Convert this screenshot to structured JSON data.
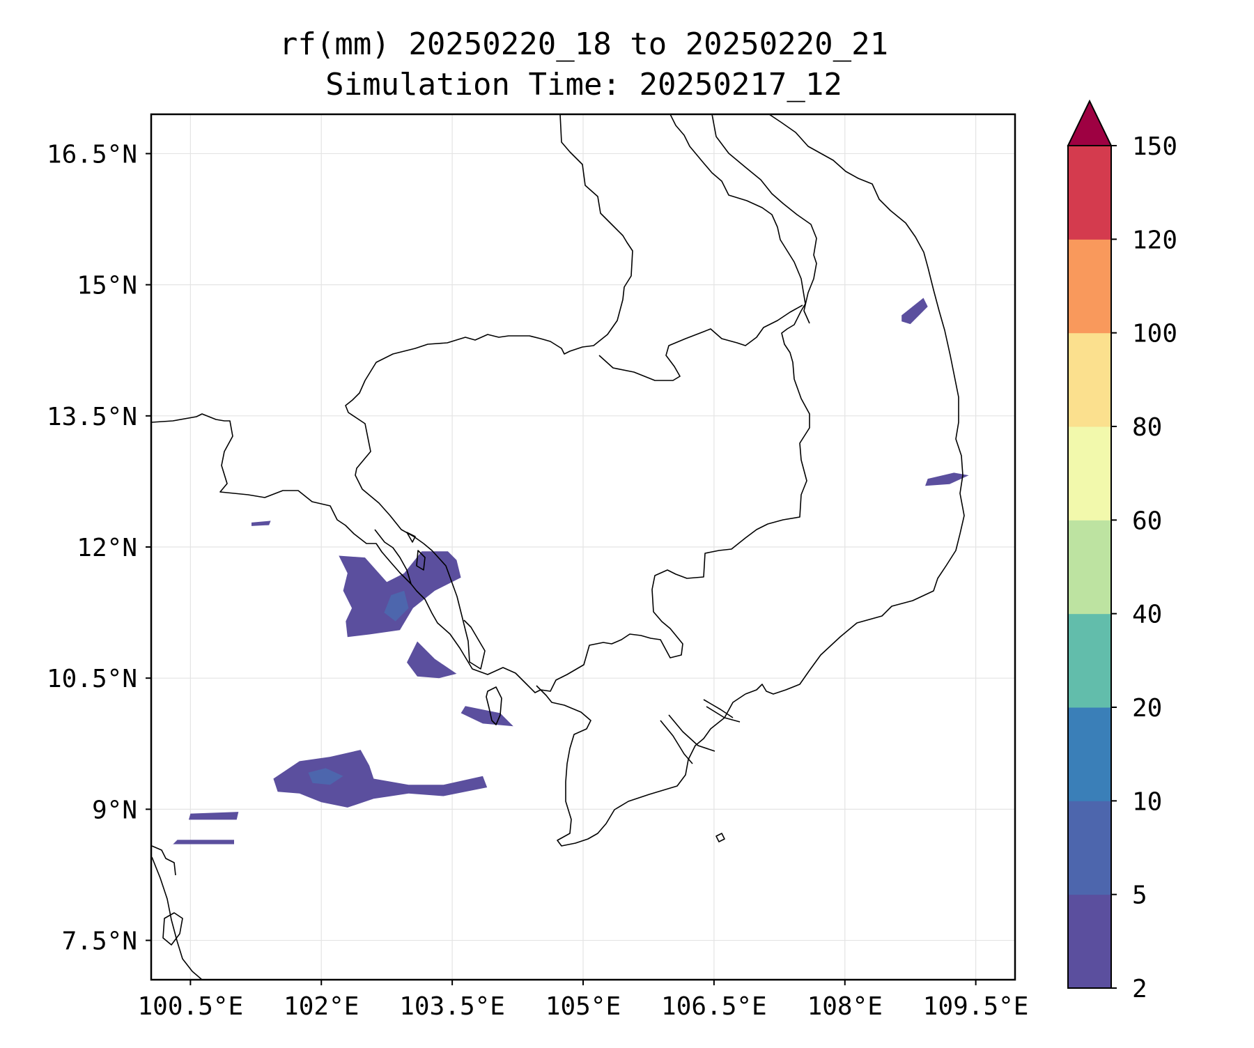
{
  "chart_data": {
    "type": "heatmap",
    "title_line1": "rf(mm) 20250220_18 to 20250220_21",
    "title_line2": "Simulation Time: 20250217_12",
    "variable": "rf(mm)",
    "x_ticks": [
      {
        "value": 100.5,
        "label": "100.5°E"
      },
      {
        "value": 102.0,
        "label": "102°E"
      },
      {
        "value": 103.5,
        "label": "103.5°E"
      },
      {
        "value": 105.0,
        "label": "105°E"
      },
      {
        "value": 106.5,
        "label": "106.5°E"
      },
      {
        "value": 108.0,
        "label": "108°E"
      },
      {
        "value": 109.5,
        "label": "109.5°E"
      }
    ],
    "y_ticks": [
      {
        "value": 7.5,
        "label": "7.5°N"
      },
      {
        "value": 9.0,
        "label": "9°N"
      },
      {
        "value": 10.5,
        "label": "10.5°N"
      },
      {
        "value": 12.0,
        "label": "12°N"
      },
      {
        "value": 13.5,
        "label": "13.5°N"
      },
      {
        "value": 15.0,
        "label": "15°N"
      },
      {
        "value": 16.5,
        "label": "16.5°N"
      }
    ],
    "xlim": [
      100.05,
      109.95
    ],
    "ylim": [
      7.05,
      16.95
    ],
    "grid": true,
    "colorbar": {
      "levels": [
        2,
        5,
        10,
        20,
        40,
        60,
        80,
        100,
        120,
        150
      ],
      "colors": [
        "#5b4f9e",
        "#4d66ad",
        "#3a7fb8",
        "#62bdab",
        "#bde3a1",
        "#f2f9ac",
        "#fbe08e",
        "#f9995c",
        "#d43b4e"
      ],
      "extend_color": "#9e0142",
      "extend": "max"
    },
    "rain_areas": [
      {
        "name": "gulf-thailand-main",
        "value_mm": "2-5",
        "poly": [
          [
            102.2,
            11.9
          ],
          [
            102.5,
            11.88
          ],
          [
            102.75,
            11.6
          ],
          [
            102.95,
            11.7
          ],
          [
            103.15,
            11.95
          ],
          [
            103.45,
            11.95
          ],
          [
            103.55,
            11.85
          ],
          [
            103.6,
            11.65
          ],
          [
            103.3,
            11.5
          ],
          [
            103.05,
            11.3
          ],
          [
            102.9,
            11.05
          ],
          [
            102.55,
            11.0
          ],
          [
            102.3,
            10.97
          ],
          [
            102.28,
            11.15
          ],
          [
            102.35,
            11.3
          ],
          [
            102.25,
            11.5
          ],
          [
            102.3,
            11.7
          ]
        ]
      },
      {
        "name": "gulf-thailand-core",
        "value_mm": "5-10",
        "poly": [
          [
            102.8,
            11.45
          ],
          [
            102.95,
            11.5
          ],
          [
            103.0,
            11.3
          ],
          [
            102.85,
            11.15
          ],
          [
            102.72,
            11.25
          ]
        ]
      },
      {
        "name": "gulf-south-coast",
        "value_mm": "2-5",
        "poly": [
          [
            103.1,
            10.92
          ],
          [
            103.3,
            10.72
          ],
          [
            103.55,
            10.55
          ],
          [
            103.35,
            10.5
          ],
          [
            103.1,
            10.52
          ],
          [
            102.98,
            10.68
          ]
        ]
      },
      {
        "name": "gulf-central-band",
        "value_mm": "2-5",
        "poly": [
          [
            101.45,
            9.35
          ],
          [
            101.75,
            9.55
          ],
          [
            102.1,
            9.6
          ],
          [
            102.45,
            9.68
          ],
          [
            102.55,
            9.5
          ],
          [
            102.6,
            9.35
          ],
          [
            103.0,
            9.28
          ],
          [
            103.4,
            9.28
          ],
          [
            103.85,
            9.38
          ],
          [
            103.9,
            9.25
          ],
          [
            103.4,
            9.15
          ],
          [
            103.0,
            9.18
          ],
          [
            102.6,
            9.12
          ],
          [
            102.3,
            9.02
          ],
          [
            102.0,
            9.08
          ],
          [
            101.75,
            9.18
          ],
          [
            101.5,
            9.2
          ]
        ]
      },
      {
        "name": "gulf-central-core",
        "value_mm": "5-10",
        "poly": [
          [
            101.85,
            9.42
          ],
          [
            102.05,
            9.47
          ],
          [
            102.25,
            9.38
          ],
          [
            102.1,
            9.28
          ],
          [
            101.9,
            9.3
          ]
        ]
      },
      {
        "name": "gulf-west-band",
        "value_mm": "2-5",
        "poly": [
          [
            100.5,
            8.95
          ],
          [
            101.05,
            8.97
          ],
          [
            101.03,
            8.88
          ],
          [
            100.48,
            8.88
          ]
        ]
      },
      {
        "name": "gulf-west-band-2",
        "value_mm": "2-5",
        "poly": [
          [
            100.35,
            8.65
          ],
          [
            101.0,
            8.65
          ],
          [
            101.0,
            8.6
          ],
          [
            100.3,
            8.6
          ],
          [
            100.2,
            8.5
          ]
        ]
      },
      {
        "name": "phu-quoc-northwest",
        "value_mm": "2-5",
        "poly": [
          [
            103.65,
            10.18
          ],
          [
            104.05,
            10.1
          ],
          [
            104.2,
            9.95
          ],
          [
            103.85,
            9.98
          ],
          [
            103.6,
            10.1
          ]
        ]
      },
      {
        "name": "central-vietnam-coast-north",
        "value_mm": "2-5",
        "poly": [
          [
            108.65,
            14.65
          ],
          [
            108.9,
            14.85
          ],
          [
            108.95,
            14.75
          ],
          [
            108.75,
            14.55
          ],
          [
            108.65,
            14.58
          ]
        ]
      },
      {
        "name": "central-vietnam-coast-south",
        "value_mm": "2-5",
        "poly": [
          [
            108.95,
            12.78
          ],
          [
            109.25,
            12.85
          ],
          [
            109.42,
            12.82
          ],
          [
            109.2,
            12.72
          ],
          [
            108.92,
            12.7
          ]
        ]
      },
      {
        "name": "thai-coast-small",
        "value_mm": "2-5",
        "poly": [
          [
            101.2,
            12.28
          ],
          [
            101.42,
            12.3
          ],
          [
            101.4,
            12.25
          ],
          [
            101.2,
            12.24
          ]
        ]
      }
    ]
  }
}
